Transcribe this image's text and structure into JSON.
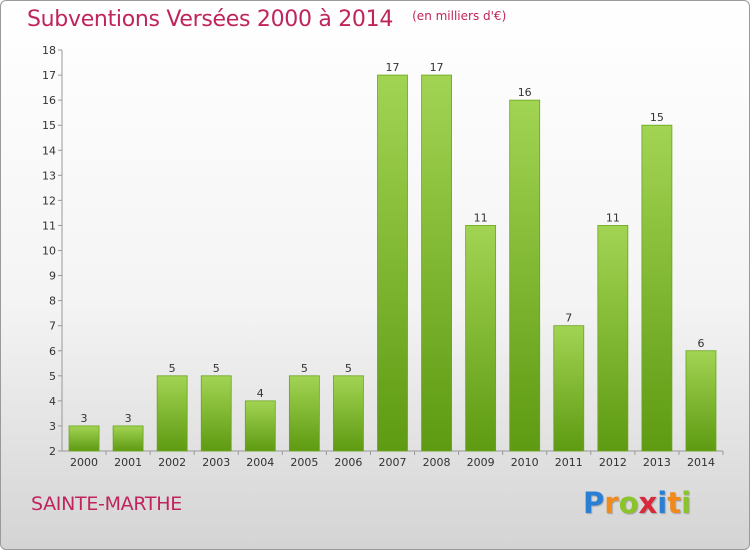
{
  "title": "Subventions Versées 2000 à 2014",
  "subtitle": "(en milliers d'€)",
  "commune": "SAINTE-MARTHE",
  "logo": {
    "letters": [
      {
        "ch": "P",
        "color": "#2a7fd4"
      },
      {
        "ch": "r",
        "color": "#f08a1c"
      },
      {
        "ch": "o",
        "color": "#8ac428"
      },
      {
        "ch": "x",
        "color": "#d8283c"
      },
      {
        "ch": "i",
        "color": "#2a7fd4"
      },
      {
        "ch": "t",
        "color": "#f08a1c"
      },
      {
        "ch": "i",
        "color": "#8ac428"
      }
    ]
  },
  "colors": {
    "bar_top": "#a2d453",
    "bar_bottom": "#5e9a12",
    "bar_edge": "#6aa51c",
    "title": "#c0245c"
  },
  "chart_data": {
    "type": "bar",
    "categories": [
      "2000",
      "2001",
      "2002",
      "2003",
      "2004",
      "2005",
      "2006",
      "2007",
      "2008",
      "2009",
      "2010",
      "2011",
      "2012",
      "2013",
      "2014"
    ],
    "values": [
      3,
      3,
      5,
      5,
      4,
      5,
      5,
      17,
      17,
      11,
      16,
      7,
      11,
      15,
      6
    ],
    "ylim": [
      2,
      18
    ],
    "yticks": [
      2,
      3,
      4,
      5,
      6,
      7,
      8,
      9,
      10,
      11,
      12,
      13,
      14,
      15,
      16,
      17,
      18
    ],
    "grid": false,
    "legend": "none"
  }
}
